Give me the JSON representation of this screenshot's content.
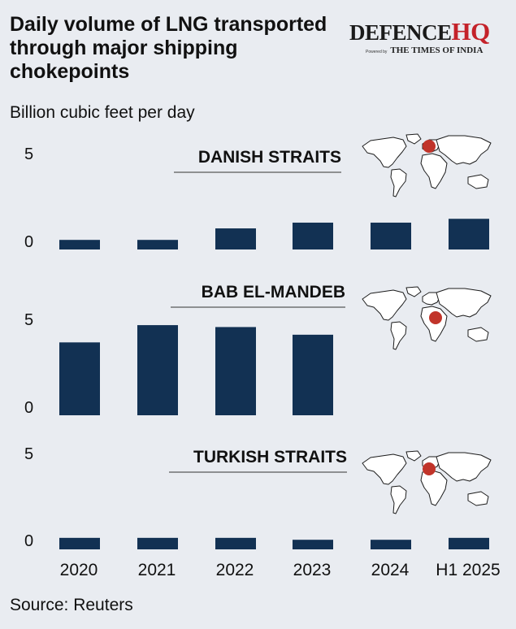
{
  "title": "Daily volume of LNG transported through major shipping chokepoints",
  "subtitle": "Billion cubic feet per day",
  "source": "Source: Reuters",
  "logo": {
    "main": "DEFENCE",
    "accent": "HQ",
    "powered_by": "Powered by",
    "partner": "THE TIMES OF INDIA"
  },
  "colors": {
    "bar": "#123153",
    "background": "#e9ecf1",
    "marker": "#c1342a",
    "text": "#111111"
  },
  "chart_data": {
    "type": "bar",
    "categories": [
      "2020",
      "2021",
      "2022",
      "2023",
      "2024",
      "H1 2025"
    ],
    "ylim": [
      0,
      5
    ],
    "yticks": [
      "0",
      "5"
    ],
    "panels": [
      {
        "name": "DANISH STRAITS",
        "values": [
          0.5,
          0.5,
          1.1,
          1.4,
          1.4,
          1.6
        ],
        "map_marker": "north-europe"
      },
      {
        "name": "BAB EL-MANDEB",
        "values": [
          3.8,
          4.7,
          4.6,
          4.2,
          null,
          null
        ],
        "map_marker": "red-sea"
      },
      {
        "name": "TURKISH STRAITS",
        "values": [
          0.6,
          0.6,
          0.6,
          0.5,
          0.5,
          0.6
        ],
        "map_marker": "turkey"
      }
    ]
  }
}
